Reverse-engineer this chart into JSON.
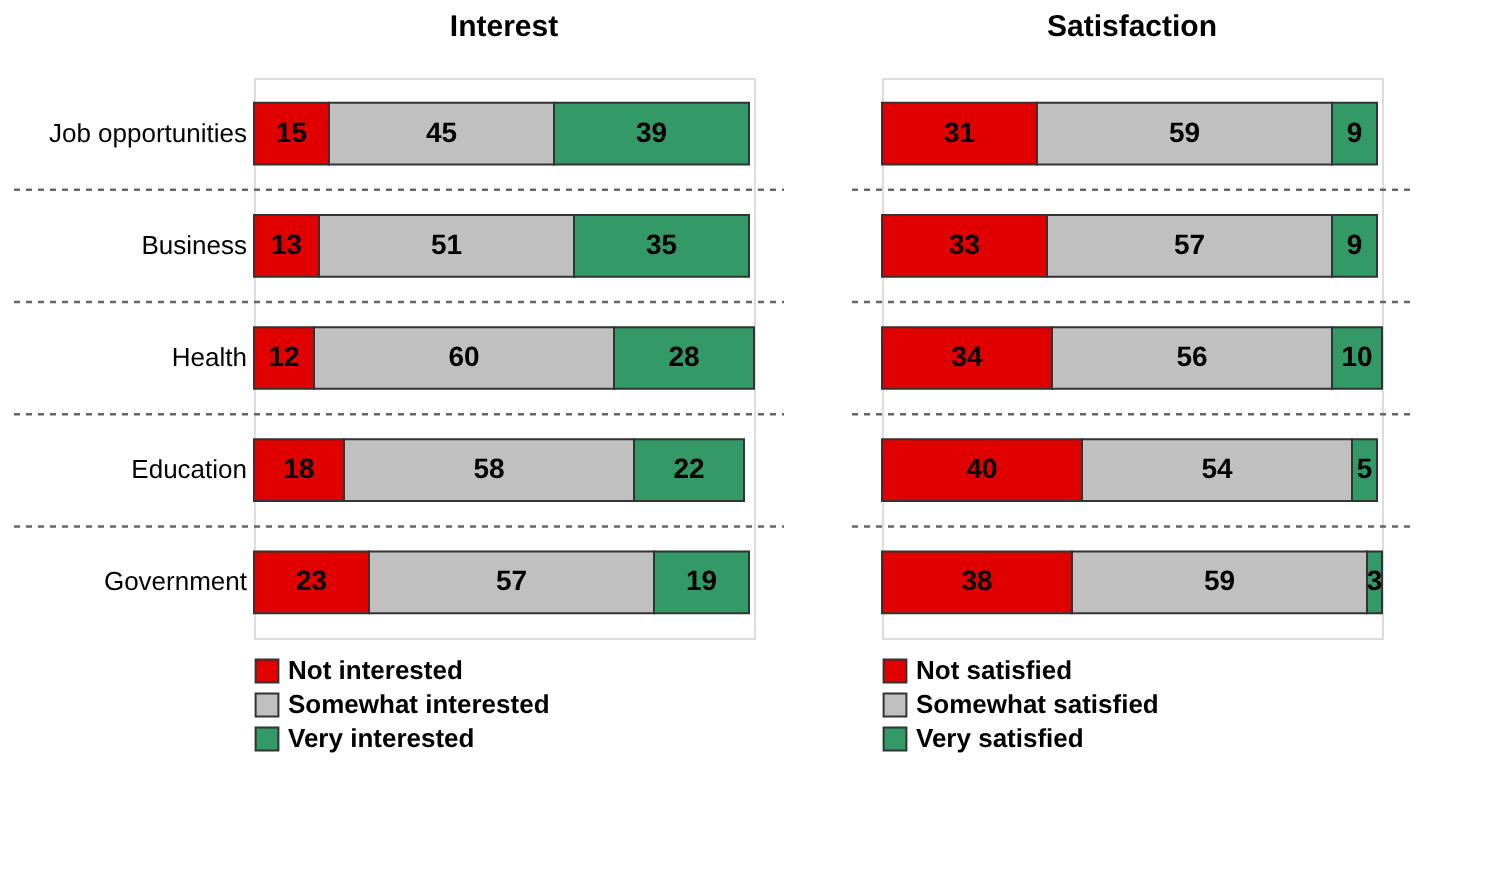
{
  "chart_data": [
    {
      "type": "bar",
      "orientation": "horizontal",
      "stacked": true,
      "title": "Interest",
      "categories": [
        "Job opportunities",
        "Business",
        "Health",
        "Education",
        "Government"
      ],
      "series": [
        {
          "name": "Not interested",
          "color": "#e00000",
          "values": [
            15,
            13,
            12,
            18,
            23
          ]
        },
        {
          "name": "Somewhat interested",
          "color": "#c0c0c0",
          "values": [
            45,
            51,
            60,
            58,
            57
          ]
        },
        {
          "name": "Very interested",
          "color": "#339966",
          "values": [
            39,
            35,
            28,
            22,
            19
          ]
        }
      ],
      "data_labels": true,
      "legend": "bottom",
      "grid": "y",
      "tick_labels": "y"
    },
    {
      "type": "bar",
      "orientation": "horizontal",
      "stacked": true,
      "title": "Satisfaction",
      "categories": [
        null,
        null,
        null,
        null,
        null
      ],
      "series": [
        {
          "name": "Not satisfied",
          "color": "#e00000",
          "values": [
            31,
            33,
            34,
            40,
            38
          ]
        },
        {
          "name": "Somewhat satisfied",
          "color": "#c0c0c0",
          "values": [
            59,
            57,
            56,
            54,
            59
          ]
        },
        {
          "name": "Very satisfied",
          "color": "#339966",
          "values": [
            9,
            9,
            10,
            5,
            3
          ]
        }
      ],
      "data_labels": true,
      "legend": "bottom",
      "grid": "y",
      "tick_labels": false
    }
  ]
}
